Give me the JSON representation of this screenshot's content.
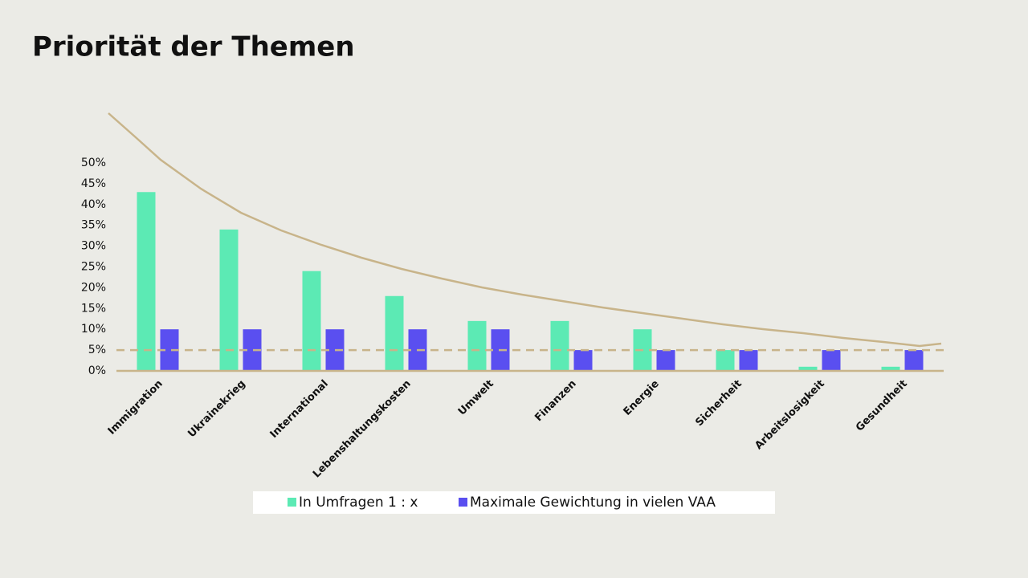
{
  "chart_data": {
    "type": "bar",
    "title": "Priorität der Themen",
    "categories": [
      "Immigration",
      "Ukrainekrieg",
      "International",
      "Lebenshaltungskosten",
      "Umwelt",
      "Finanzen",
      "Energie",
      "Sicherheit",
      "Arbeitslosigkeit",
      "Gesundheit"
    ],
    "series": [
      {
        "name": "In Umfragen 1 : x",
        "color": "#5ceab4",
        "values": [
          43,
          34,
          24,
          18,
          12,
          12,
          10,
          5,
          1,
          1
        ]
      },
      {
        "name": "Maximale Gewichtung in vielen VAA",
        "color": "#5a4ff0",
        "values": [
          10,
          10,
          10,
          10,
          10,
          5,
          5,
          5,
          5,
          5
        ]
      }
    ],
    "ylim": [
      0,
      50
    ],
    "yticks": [
      {
        "value": 0,
        "label": "0%"
      },
      {
        "value": 5,
        "label": "5%"
      },
      {
        "value": 10,
        "label": "10%"
      },
      {
        "value": 15,
        "label": "15%"
      },
      {
        "value": 20,
        "label": "20%"
      },
      {
        "value": 25,
        "label": "25%"
      },
      {
        "value": 30,
        "label": "30%"
      },
      {
        "value": 35,
        "label": "35%"
      },
      {
        "value": 40,
        "label": "40%"
      },
      {
        "value": 45,
        "label": "45%"
      },
      {
        "value": 50,
        "label": "50%"
      }
    ],
    "reference_line": 5,
    "grid": false,
    "legend": "bottom"
  }
}
